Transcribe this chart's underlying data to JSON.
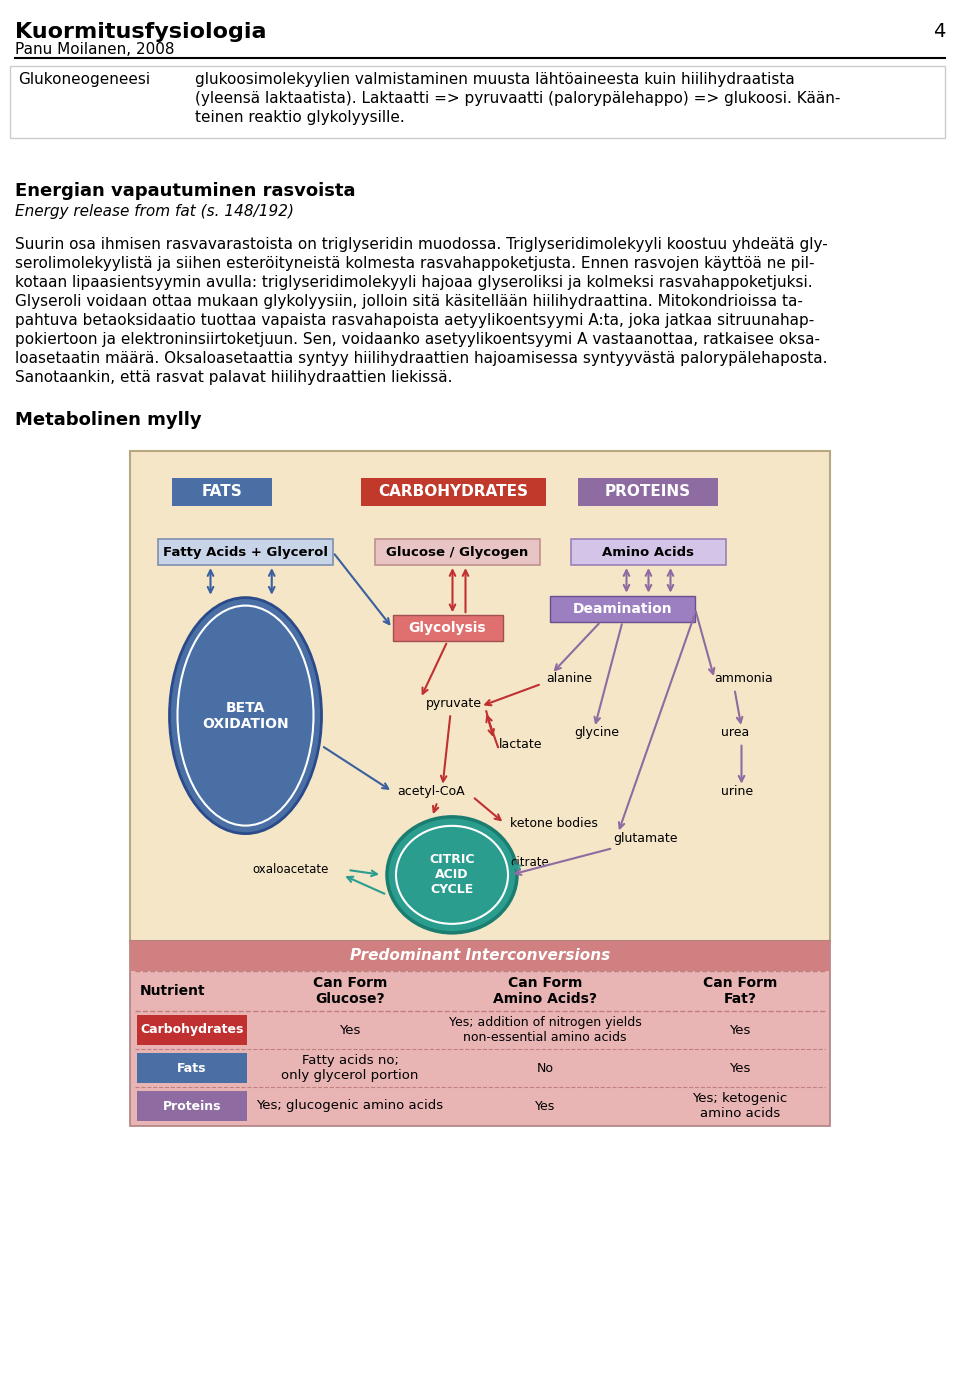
{
  "page_title": "Kuormitusfysiologia",
  "page_subtitle": "Panu Moilanen, 2008",
  "page_number": "4",
  "section1_title": "Glukoneogeneesi",
  "section2_title": "Energian vapautuminen rasvoista",
  "section2_subtitle": "Energy release from fat (s. 148/192)",
  "section3_title": "Metabolinen mylly",
  "bg_color": "#f5e6c8",
  "fats_box_color": "#4a6fa5",
  "carbs_box_color": "#c0392b",
  "proteins_box_color": "#8e6ba0",
  "beta_ox_color": "#4a6fa5",
  "citric_color": "#2a9d8f",
  "glycolysis_color": "#e07070",
  "deamination_color": "#9b7fc0",
  "fatty_acids_box_color": "#c8d4e8",
  "glucose_box_color": "#e8c4c4",
  "amino_acids_box_color": "#d4c4e8",
  "arrow_red": "#c03030",
  "arrow_blue": "#3a5f9f",
  "arrow_purple": "#8e6ba0",
  "arrow_teal": "#2a9d8f",
  "table_bg": "#e8b4b4",
  "table_header_bg": "#d4888a",
  "carbs_row_color": "#c03030",
  "fats_row_color": "#4a6fa5",
  "proteins_row_color": "#8e6ba0",
  "sec1_box_border": "#cccccc",
  "sec1_lines": [
    "glukoosimolekyylien valmistaminen muusta lähtöaineesta kuin hiilihydraatista",
    "(yleensä laktaatista). Laktaatti => pyruvaatti (palorypälehappo) => glukoosi. Kään-",
    "teinen reaktio glykolyysille."
  ],
  "body_lines": [
    "Suurin osa ihmisen rasvavarastoista on triglyseridin muodossa. Triglyseridimolekyyli koostuu yhdeätä gly-",
    "serolimolekyylistä ja siihen esteröityneistä kolmesta rasvahappoketjusta. Ennen rasvojen käyttöä ne pil-",
    "kotaan lipaasientsyymin avulla: triglyseridimolekyyli hajoaa glyseroliksi ja kolmeksi rasvahappoketjuksi.",
    "Glyseroli voidaan ottaa mukaan glykolyysiin, jolloin sitä käsitellään hiilihydraattina. Mitokondrioissa ta-",
    "pahtuva betaoksidaatio tuottaa vapaista rasvahapoista aetyylikoentsyymi A:ta, joka jatkaa sitruunahap-",
    "pokiertoon ja elektroninsiirtoketjuun. Sen, voidaanko asetyylikoentsyymi A vastaanottaa, ratkaisee oksa-",
    "loasetaatin määrä. Oksaloasetaattia syntyy hiilihydraattien hajoamisessa syntyyvästä palorypälehaposta.",
    "Sanotaankin, että rasvat palavat hiilihydraattien liekissä."
  ]
}
